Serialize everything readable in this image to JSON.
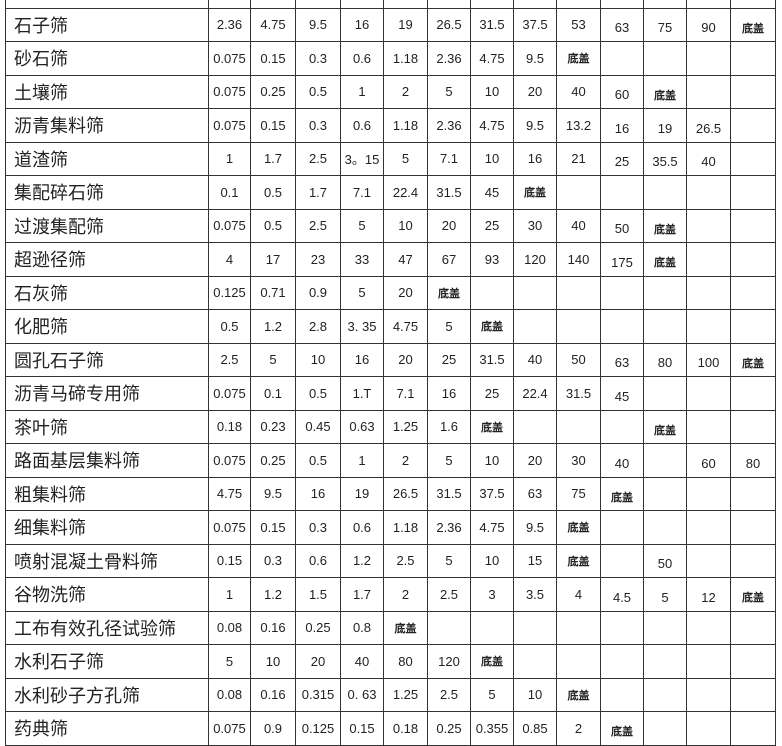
{
  "table": {
    "rows": [
      {
        "name": "石子筛",
        "values": [
          "2.36",
          "4.75",
          "9.5",
          "16",
          "19",
          "26.5",
          "31.5",
          "37.5",
          "53",
          "63",
          "75",
          "90",
          "底盖"
        ]
      },
      {
        "name": "砂石筛",
        "values": [
          "0.075",
          "0.15",
          "0.3",
          "0.6",
          "1.18",
          "2.36",
          "4.75",
          "9.5",
          "底盖",
          "",
          "",
          "",
          ""
        ]
      },
      {
        "name": "土壤筛",
        "values": [
          "0.075",
          "0.25",
          "0.5",
          "1",
          "2",
          "5",
          "10",
          "20",
          "40",
          "60",
          "底盖",
          "",
          ""
        ]
      },
      {
        "name": "沥青集料筛",
        "values": [
          "0.075",
          "0.15",
          "0.3",
          "0.6",
          "1.18",
          "2.36",
          "4.75",
          "9.5",
          "13.2",
          "16",
          "19",
          "26.5",
          ""
        ]
      },
      {
        "name": "道渣筛",
        "values": [
          "1",
          "1.7",
          "2.5",
          "3。15",
          "5",
          "7.1",
          "10",
          "16",
          "21",
          "25",
          "35.5",
          "40",
          ""
        ]
      },
      {
        "name": "集配碎石筛",
        "values": [
          "0.1",
          "0.5",
          "1.7",
          "7.1",
          "22.4",
          "31.5",
          "45",
          "底盖",
          "",
          "",
          "",
          "",
          ""
        ]
      },
      {
        "name": "过渡集配筛",
        "values": [
          "0.075",
          "0.5",
          "2.5",
          "5",
          "10",
          "20",
          "25",
          "30",
          "40",
          "50",
          "底盖",
          "",
          ""
        ]
      },
      {
        "name": "超逊径筛",
        "values": [
          "4",
          "17",
          "23",
          "33",
          "47",
          "67",
          "93",
          "120",
          "140",
          "175",
          "底盖",
          "",
          ""
        ]
      },
      {
        "name": "石灰筛",
        "values": [
          "0.125",
          "0.71",
          "0.9",
          "5",
          "20",
          "底盖",
          "",
          "",
          "",
          "",
          "",
          "",
          ""
        ]
      },
      {
        "name": "化肥筛",
        "values": [
          "0.5",
          "1.2",
          "2.8",
          "3. 35",
          "4.75",
          "5",
          "底盖",
          "",
          "",
          "",
          "",
          "",
          ""
        ]
      },
      {
        "name": "圆孔石子筛",
        "values": [
          "2.5",
          "5",
          "10",
          "16",
          "20",
          "25",
          "31.5",
          "40",
          "50",
          "63",
          "80",
          "100",
          "底盖"
        ]
      },
      {
        "name": "沥青马碲专用筛",
        "values": [
          "0.075",
          "0.1",
          "0.5",
          "1.T",
          "7.1",
          "16",
          "25",
          "22.4",
          "31.5",
          "45",
          "",
          "",
          ""
        ]
      },
      {
        "name": "茶叶筛",
        "values": [
          "0.18",
          "0.23",
          "0.45",
          "0.63",
          "1.25",
          "1.6",
          "底盖",
          "",
          "",
          "",
          "底盖",
          "",
          ""
        ]
      },
      {
        "name": "路面基层集料筛",
        "values": [
          "0.075",
          "0.25",
          "0.5",
          "1",
          "2",
          "5",
          "10",
          "20",
          "30",
          "40",
          "",
          "60",
          "80"
        ]
      },
      {
        "name": "粗集料筛",
        "values": [
          "4.75",
          "9.5",
          "16",
          "19",
          "26.5",
          "31.5",
          "37.5",
          "63",
          "75",
          "底盖",
          "",
          "",
          ""
        ]
      },
      {
        "name": "细集料筛",
        "values": [
          "0.075",
          "0.15",
          "0.3",
          "0.6",
          "1.18",
          "2.36",
          "4.75",
          "9.5",
          "底盖",
          "",
          "",
          "",
          ""
        ]
      },
      {
        "name": "喷射混凝土骨料筛",
        "values": [
          "0.15",
          "0.3",
          "0.6",
          "1.2",
          "2.5",
          "5",
          "10",
          "15",
          "底盖",
          "",
          "50",
          "",
          ""
        ]
      },
      {
        "name": "谷物洗筛",
        "values": [
          "1",
          "1.2",
          "1.5",
          "1.7",
          "2",
          "2.5",
          "3",
          "3.5",
          "4",
          "4.5",
          "5",
          "12",
          "底盖"
        ]
      },
      {
        "name": "工布有效孔径试验筛",
        "values": [
          "0.08",
          "0.16",
          "0.25",
          "0.8",
          "底盖",
          "",
          "",
          "",
          "",
          "",
          "",
          "",
          ""
        ]
      },
      {
        "name": "水利石子筛",
        "values": [
          "5",
          "10",
          "20",
          "40",
          "80",
          "120",
          "底盖",
          "",
          "",
          "",
          "",
          "",
          ""
        ]
      },
      {
        "name": "水利砂子方孔筛",
        "values": [
          "0.08",
          "0.16",
          "0.315",
          "0. 63",
          "1.25",
          "2.5",
          "5",
          "10",
          "底盖",
          "",
          "",
          "",
          ""
        ]
      },
      {
        "name": "药典筛",
        "values": [
          "0.075",
          "0.9",
          "0.125",
          "0.15",
          "0.18",
          "0.25",
          "0.355",
          "0.85",
          "2",
          "底盖",
          "",
          "",
          ""
        ]
      }
    ]
  }
}
